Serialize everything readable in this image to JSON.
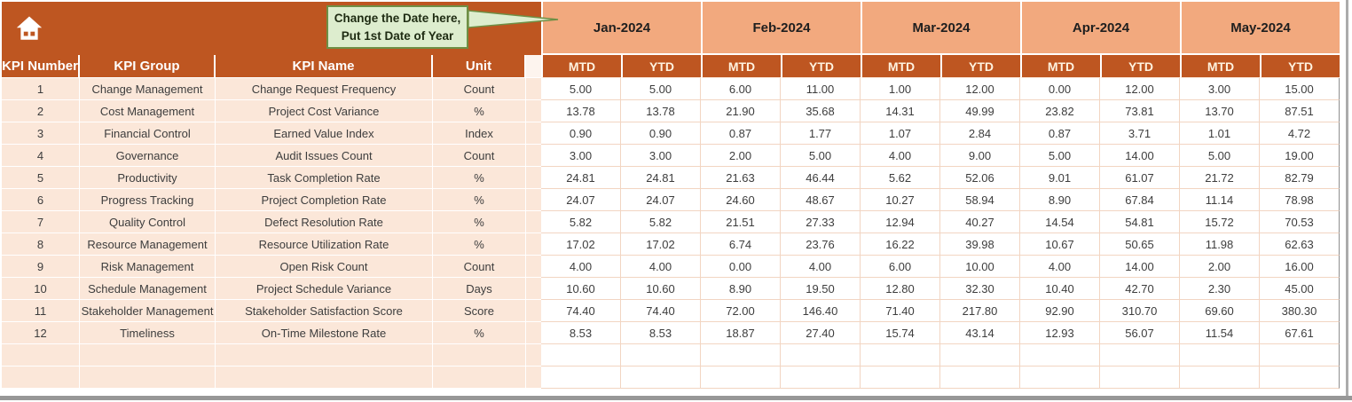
{
  "callout": {
    "line1": "Change the Date here,",
    "line2": "Put 1st Date of Year"
  },
  "table": {
    "column_headers": {
      "kpi_number": "KPI Number",
      "kpi_group": "KPI Group",
      "kpi_name": "KPI Name",
      "unit": "Unit"
    },
    "sub_headers": [
      "MTD",
      "YTD"
    ],
    "months": [
      "Jan-2024",
      "Feb-2024",
      "Mar-2024",
      "Apr-2024",
      "May-2024"
    ],
    "rows": [
      {
        "kpi_number": "1",
        "kpi_group": "Change Management",
        "kpi_name": "Change Request Frequency",
        "unit": "Count",
        "values": [
          "5.00",
          "5.00",
          "6.00",
          "11.00",
          "1.00",
          "12.00",
          "0.00",
          "12.00",
          "3.00",
          "15.00"
        ]
      },
      {
        "kpi_number": "2",
        "kpi_group": "Cost Management",
        "kpi_name": "Project Cost Variance",
        "unit": "%",
        "values": [
          "13.78",
          "13.78",
          "21.90",
          "35.68",
          "14.31",
          "49.99",
          "23.82",
          "73.81",
          "13.70",
          "87.51"
        ]
      },
      {
        "kpi_number": "3",
        "kpi_group": "Financial Control",
        "kpi_name": "Earned Value Index",
        "unit": "Index",
        "values": [
          "0.90",
          "0.90",
          "0.87",
          "1.77",
          "1.07",
          "2.84",
          "0.87",
          "3.71",
          "1.01",
          "4.72"
        ]
      },
      {
        "kpi_number": "4",
        "kpi_group": "Governance",
        "kpi_name": "Audit Issues Count",
        "unit": "Count",
        "values": [
          "3.00",
          "3.00",
          "2.00",
          "5.00",
          "4.00",
          "9.00",
          "5.00",
          "14.00",
          "5.00",
          "19.00"
        ]
      },
      {
        "kpi_number": "5",
        "kpi_group": "Productivity",
        "kpi_name": "Task Completion Rate",
        "unit": "%",
        "values": [
          "24.81",
          "24.81",
          "21.63",
          "46.44",
          "5.62",
          "52.06",
          "9.01",
          "61.07",
          "21.72",
          "82.79"
        ]
      },
      {
        "kpi_number": "6",
        "kpi_group": "Progress Tracking",
        "kpi_name": "Project Completion Rate",
        "unit": "%",
        "values": [
          "24.07",
          "24.07",
          "24.60",
          "48.67",
          "10.27",
          "58.94",
          "8.90",
          "67.84",
          "11.14",
          "78.98"
        ]
      },
      {
        "kpi_number": "7",
        "kpi_group": "Quality Control",
        "kpi_name": "Defect Resolution Rate",
        "unit": "%",
        "values": [
          "5.82",
          "5.82",
          "21.51",
          "27.33",
          "12.94",
          "40.27",
          "14.54",
          "54.81",
          "15.72",
          "70.53"
        ]
      },
      {
        "kpi_number": "8",
        "kpi_group": "Resource Management",
        "kpi_name": "Resource Utilization Rate",
        "unit": "%",
        "values": [
          "17.02",
          "17.02",
          "6.74",
          "23.76",
          "16.22",
          "39.98",
          "10.67",
          "50.65",
          "11.98",
          "62.63"
        ]
      },
      {
        "kpi_number": "9",
        "kpi_group": "Risk Management",
        "kpi_name": "Open Risk Count",
        "unit": "Count",
        "values": [
          "4.00",
          "4.00",
          "0.00",
          "4.00",
          "6.00",
          "10.00",
          "4.00",
          "14.00",
          "2.00",
          "16.00"
        ]
      },
      {
        "kpi_number": "10",
        "kpi_group": "Schedule Management",
        "kpi_name": "Project Schedule Variance",
        "unit": "Days",
        "values": [
          "10.60",
          "10.60",
          "8.90",
          "19.50",
          "12.80",
          "32.30",
          "10.40",
          "42.70",
          "2.30",
          "45.00"
        ]
      },
      {
        "kpi_number": "11",
        "kpi_group": "Stakeholder Management",
        "kpi_name": "Stakeholder Satisfaction Score",
        "unit": "Score",
        "values": [
          "74.40",
          "74.40",
          "72.00",
          "146.40",
          "71.40",
          "217.80",
          "92.90",
          "310.70",
          "69.60",
          "380.30"
        ]
      },
      {
        "kpi_number": "12",
        "kpi_group": "Timeliness",
        "kpi_name": "On-Time Milestone Rate",
        "unit": "%",
        "values": [
          "8.53",
          "8.53",
          "18.87",
          "27.40",
          "15.74",
          "43.14",
          "12.93",
          "56.07",
          "11.54",
          "67.61"
        ]
      }
    ],
    "empty_rows": 2
  },
  "icons": {
    "home": "home-icon"
  },
  "colors": {
    "rust": "#BE5621",
    "salmon": "#F2A97E",
    "pink": "#FBE7D9",
    "subheader_text": "#FFF3E0",
    "callout_fill": "#DDEDCE",
    "callout_border": "#6E8F45"
  }
}
